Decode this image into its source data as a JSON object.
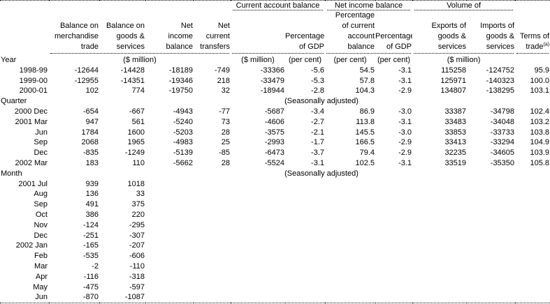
{
  "table": {
    "colors": {
      "text": "#000000",
      "background": "#ffffff",
      "rule": "#000000"
    },
    "groups": {
      "current_account": "Current account balance",
      "net_income": "Net income balance",
      "volume": "Volume of"
    },
    "col_headers": {
      "merchandise": "Balance on\nmerchandise\ntrade",
      "goods_services": "Balance on\ngoods &\nservices",
      "net_income_balance": "Net\nincome\nbalance",
      "net_current_transfers": "Net\ncurrent\ntransfers",
      "pct_gdp_current_account": "Percentage\nof GDP",
      "pct_of_current_account": "Percentage\nof current\naccount\nbalance",
      "pct_gdp_net_income": "Percentage\nof GDP",
      "exports": "Exports of\ngoods &\nservices",
      "imports": "Imports of\ngoods &\nservices",
      "terms_of_trade": "Terms of\ntrade",
      "terms_of_trade_note": "(a)"
    },
    "units": {
      "row_label": "Year",
      "left_unit": "($ million)",
      "current_account_unit": "($ million)",
      "pct_gdp_current_account_unit": "(per cent)",
      "pct_of_current_account_unit": "(per cent)",
      "pct_gdp_net_income_unit": "(per cent)",
      "volume_unit": "($ million)"
    },
    "sections": [
      {
        "label": "Year",
        "note": "",
        "label_in_units_row": true,
        "rows": [
          {
            "label": "1998-99",
            "values": [
              "-12644",
              "-14428",
              "-18189",
              "-749",
              "-33366",
              "-5.6",
              "54.5",
              "-3.1",
              "115258",
              "-124752",
              "95.9"
            ]
          },
          {
            "label": "1999-00",
            "values": [
              "-12955",
              "-14351",
              "-19346",
              "218",
              "-33479",
              "-5.3",
              "57.8",
              "-3.1",
              "125971",
              "-140323",
              "100.0"
            ]
          },
          {
            "label": "2000-01",
            "values": [
              "102",
              "774",
              "-19750",
              "32",
              "-18944",
              "-2.8",
              "104.3",
              "-2.9",
              "134807",
              "-138295",
              "103.1"
            ]
          }
        ]
      },
      {
        "label": "Quarter",
        "note": "(Seasonally adjusted)",
        "label_in_units_row": false,
        "rows": [
          {
            "label": "2000 Dec",
            "values": [
              "-654",
              "-667",
              "-4943",
              "-77",
              "-5687",
              "-3.4",
              "86.9",
              "-3.0",
              "33387",
              "-34798",
              "102.4"
            ]
          },
          {
            "label": "2001 Mar",
            "values": [
              "947",
              "561",
              "-5240",
              "73",
              "-4606",
              "-2.7",
              "113.8",
              "-3.1",
              "33483",
              "-34048",
              "103.2"
            ]
          },
          {
            "label": "Jun",
            "values": [
              "1784",
              "1600",
              "-5203",
              "28",
              "-3575",
              "-2.1",
              "145.5",
              "-3.0",
              "33853",
              "-33733",
              "103.8"
            ]
          },
          {
            "label": "Sep",
            "values": [
              "2068",
              "1965",
              "-4983",
              "25",
              "-2993",
              "-1.7",
              "166.5",
              "-2.9",
              "33413",
              "-33294",
              "104.9"
            ]
          },
          {
            "label": "Dec",
            "values": [
              "-835",
              "-1249",
              "-5139",
              "-85",
              "-6473",
              "-3.7",
              "79.4",
              "-2.9",
              "32235",
              "-34605",
              "103.9"
            ]
          },
          {
            "label": "2002 Mar",
            "values": [
              "183",
              "110",
              "-5662",
              "28",
              "-5524",
              "-3.1",
              "102.5",
              "-3.1",
              "33519",
              "-35350",
              "105.8"
            ]
          }
        ]
      },
      {
        "label": "Month",
        "note": "(Seasonally adjusted)",
        "label_in_units_row": false,
        "rows": [
          {
            "label": "2001 Jul",
            "values": [
              "939",
              "1018",
              "",
              "",
              "",
              "",
              "",
              "",
              "",
              "",
              ""
            ]
          },
          {
            "label": "Aug",
            "values": [
              "136",
              "33",
              "",
              "",
              "",
              "",
              "",
              "",
              "",
              "",
              ""
            ]
          },
          {
            "label": "Sep",
            "values": [
              "491",
              "375",
              "",
              "",
              "",
              "",
              "",
              "",
              "",
              "",
              ""
            ]
          },
          {
            "label": "Oct",
            "values": [
              "386",
              "220",
              "",
              "",
              "",
              "",
              "",
              "",
              "",
              "",
              ""
            ]
          },
          {
            "label": "Nov",
            "values": [
              "-124",
              "-295",
              "",
              "",
              "",
              "",
              "",
              "",
              "",
              "",
              ""
            ]
          },
          {
            "label": "Dec",
            "values": [
              "-251",
              "-307",
              "",
              "",
              "",
              "",
              "",
              "",
              "",
              "",
              ""
            ]
          },
          {
            "label": "2002 Jan",
            "values": [
              "-165",
              "-207",
              "",
              "",
              "",
              "",
              "",
              "",
              "",
              "",
              ""
            ]
          },
          {
            "label": "Feb",
            "values": [
              "-535",
              "-606",
              "",
              "",
              "",
              "",
              "",
              "",
              "",
              "",
              ""
            ]
          },
          {
            "label": "Mar",
            "values": [
              "-2",
              "-110",
              "",
              "",
              "",
              "",
              "",
              "",
              "",
              "",
              ""
            ]
          },
          {
            "label": "Apr",
            "values": [
              "-116",
              "-318",
              "",
              "",
              "",
              "",
              "",
              "",
              "",
              "",
              ""
            ]
          },
          {
            "label": "May",
            "values": [
              "-475",
              "-597",
              "",
              "",
              "",
              "",
              "",
              "",
              "",
              "",
              ""
            ]
          },
          {
            "label": "Jun",
            "values": [
              "-870",
              "-1087",
              "",
              "",
              "",
              "",
              "",
              "",
              "",
              "",
              ""
            ]
          }
        ]
      }
    ]
  }
}
